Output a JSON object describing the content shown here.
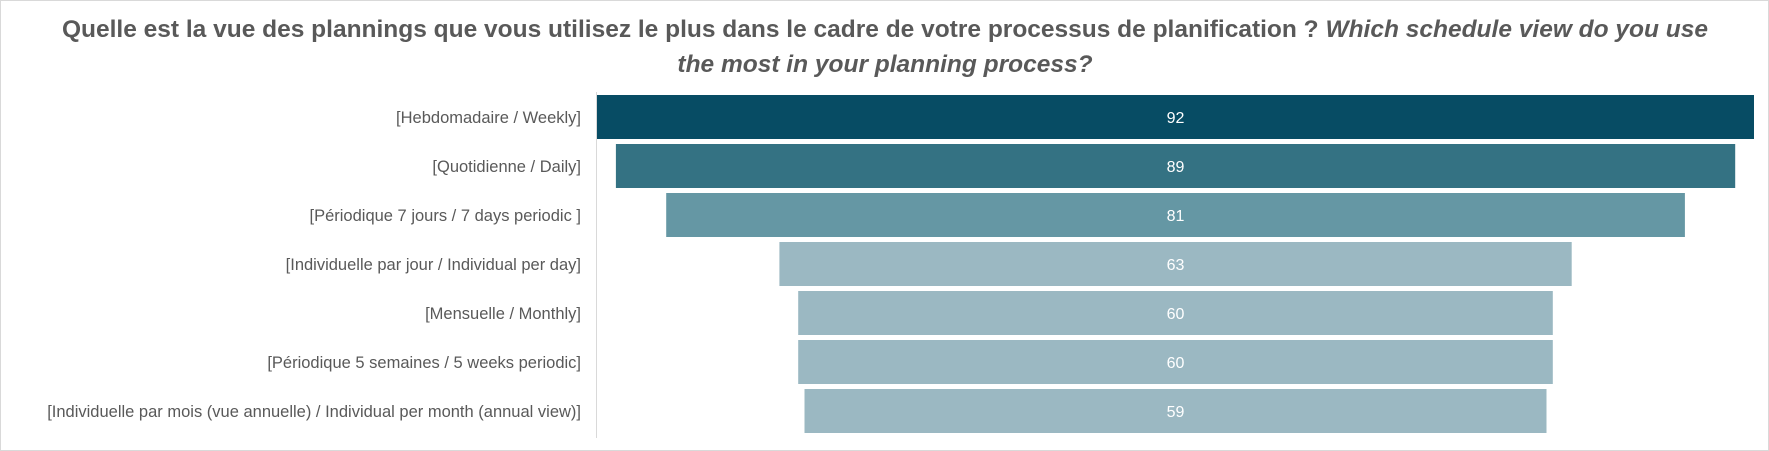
{
  "chart_data": {
    "type": "bar",
    "orientation": "horizontal",
    "style": "funnel",
    "title": "Quelle est la vue des plannings que vous utilisez le plus dans le cadre de votre processus de planification ?",
    "title_italic": "Which schedule view do you use the most in your planning process?",
    "categories": [
      "[Hebdomadaire / Weekly]",
      "[Quotidienne / Daily]",
      "[Périodique 7 jours / 7 days periodic ]",
      "[Individuelle par jour / Individual per day]",
      "[Mensuelle / Monthly]",
      "[Périodique 5 semaines / 5 weeks periodic]",
      "[Individuelle par mois (vue annuelle) / Individual per month (annual view)]"
    ],
    "values": [
      92,
      89,
      81,
      63,
      60,
      60,
      59
    ],
    "colors": [
      "#074c64",
      "#347283",
      "#6597a4",
      "#9bb8c2",
      "#9bb8c2",
      "#9bb8c2",
      "#9bb8c2"
    ],
    "data_labels": true,
    "grid": false,
    "legend": "none"
  }
}
